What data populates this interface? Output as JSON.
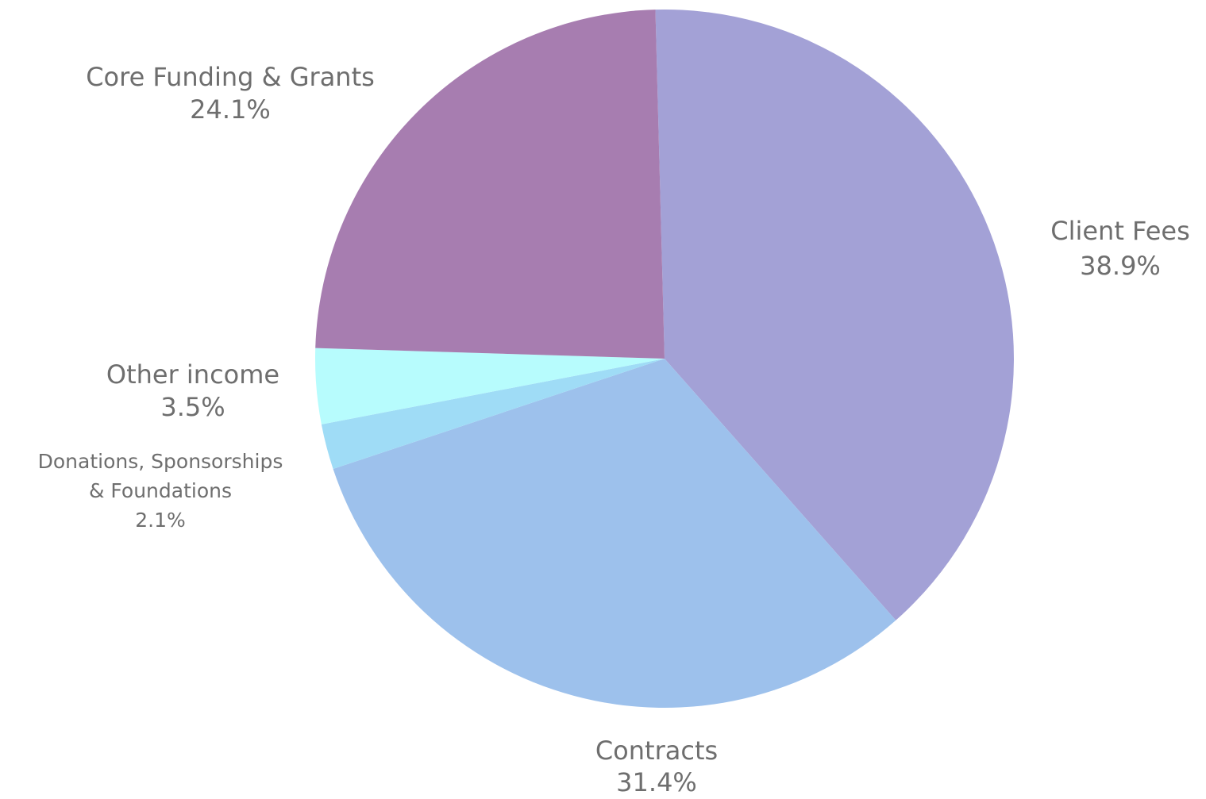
{
  "chart_data": {
    "type": "pie",
    "title": "",
    "start_angle_deg": -1.5,
    "direction": "clockwise",
    "slices": [
      {
        "id": "client-fees",
        "lines": [
          "Client Fees",
          "38.9%"
        ],
        "value": 38.9,
        "color": "#a3a1d6",
        "label_size": "lg"
      },
      {
        "id": "contracts",
        "lines": [
          "Contracts",
          "31.4%"
        ],
        "value": 31.4,
        "color": "#9dc1ec",
        "label_size": "lg"
      },
      {
        "id": "donations-sponsorships-foundations",
        "lines": [
          "Donations, Sponsorships",
          "& Foundations",
          "2.1%"
        ],
        "value": 2.1,
        "color": "#9fdcf6",
        "label_size": "sm"
      },
      {
        "id": "other-income",
        "lines": [
          "Other income",
          "3.5%"
        ],
        "value": 3.5,
        "color": "#b7fcfd",
        "label_size": "lg"
      },
      {
        "id": "core-funding-grants",
        "lines": [
          "Core Funding & Grants",
          "24.1%"
        ],
        "value": 24.1,
        "color": "#a77db0",
        "label_size": "lg"
      }
    ]
  }
}
